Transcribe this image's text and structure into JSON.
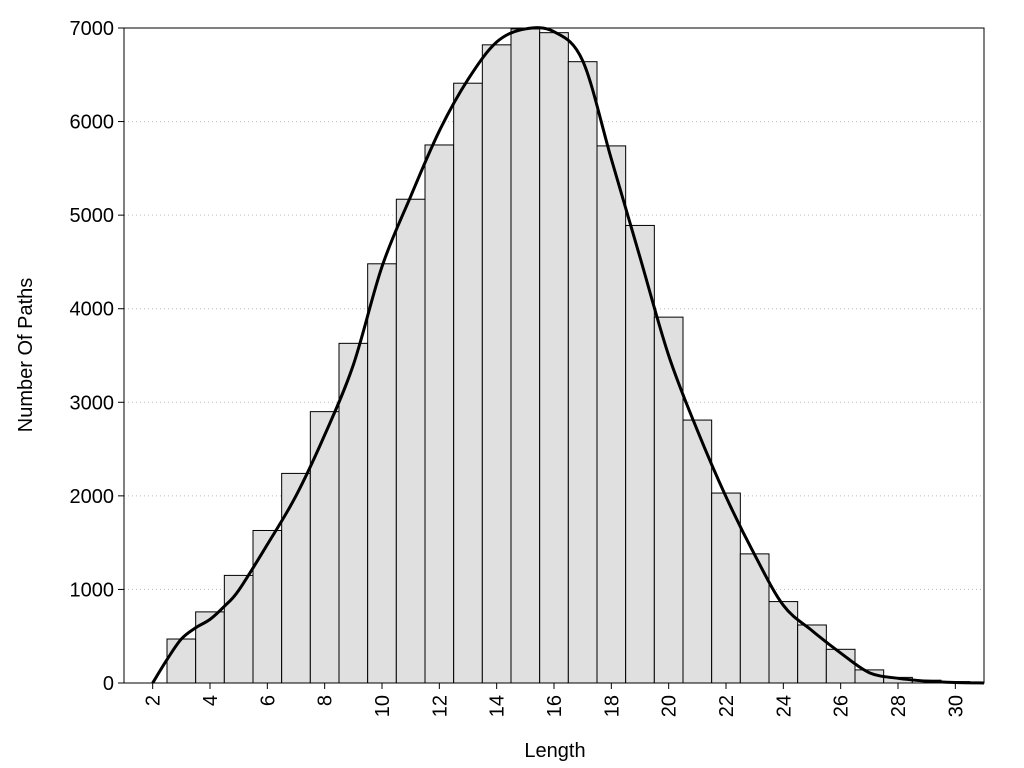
{
  "chart_data": {
    "type": "histogram",
    "xlabel": "Length",
    "ylabel": "Number Of Paths",
    "bins": [
      2.5,
      3.5,
      4.5,
      5.5,
      6.5,
      7.5,
      8.5,
      9.5,
      10.5,
      11.5,
      12.5,
      13.5,
      14.5,
      15.5,
      16.5,
      17.5,
      18.5,
      19.5,
      20.5,
      21.5,
      22.5,
      23.5,
      24.5,
      25.5,
      26.5,
      27.5,
      28.5,
      29.5,
      30.5
    ],
    "values": [
      470,
      760,
      1150,
      1630,
      2240,
      2900,
      3630,
      4480,
      5170,
      5750,
      6410,
      6820,
      6990,
      6950,
      6640,
      5740,
      4890,
      3910,
      2810,
      2030,
      1380,
      870,
      620,
      360,
      140,
      60,
      30,
      15
    ],
    "color": "#e0e0e0",
    "line": {
      "color": "#000000",
      "x": [
        2,
        2.5,
        3,
        3.5,
        4,
        4.5,
        5,
        6,
        7,
        8,
        9,
        10,
        11,
        12,
        13,
        14,
        15,
        16,
        17,
        18,
        19,
        20,
        21,
        22,
        23,
        24,
        25,
        26,
        27,
        28,
        29,
        30,
        31
      ],
      "values": [
        0,
        250,
        470,
        590,
        680,
        820,
        990,
        1480,
        2000,
        2650,
        3400,
        4450,
        5200,
        5900,
        6450,
        6850,
        6990,
        6960,
        6650,
        5600,
        4550,
        3500,
        2700,
        1990,
        1370,
        830,
        560,
        320,
        110,
        50,
        20,
        5,
        0
      ]
    },
    "xlim": [
      1,
      31
    ],
    "ylim": [
      0,
      7000
    ],
    "xticks": [
      2,
      4,
      6,
      8,
      10,
      12,
      14,
      16,
      18,
      20,
      22,
      24,
      26,
      28,
      30
    ],
    "yticks": [
      0,
      1000,
      2000,
      3000,
      4000,
      5000,
      6000,
      7000
    ],
    "grid": true
  }
}
